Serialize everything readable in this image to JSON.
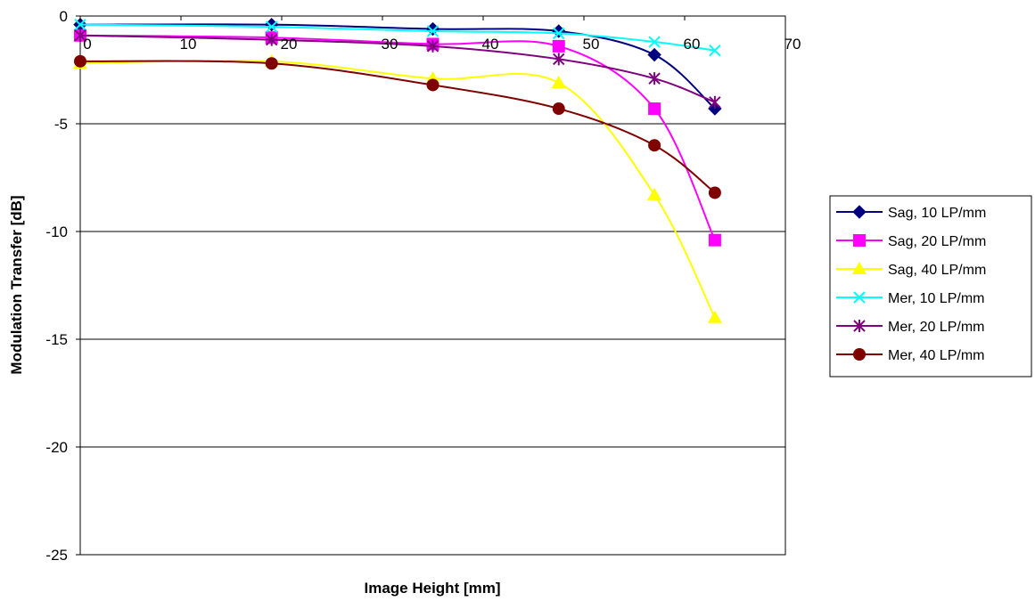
{
  "chart_data": {
    "type": "line",
    "title": "",
    "xlabel": "Image Height [mm]",
    "ylabel": "Modulation Transfer [dB]",
    "xlim": [
      0,
      70
    ],
    "ylim": [
      -25,
      0
    ],
    "x_ticks": [
      0,
      10,
      20,
      30,
      40,
      50,
      60,
      70
    ],
    "y_ticks": [
      0,
      -5,
      -10,
      -15,
      -20,
      -25
    ],
    "grid": "horizontal",
    "legend_position": "right",
    "x": [
      0,
      19,
      35,
      47.5,
      57,
      63
    ],
    "series": [
      {
        "name": "Sag, 10 LP/mm",
        "color": "#000080",
        "marker": "diamond",
        "values": [
          -0.4,
          -0.4,
          -0.6,
          -0.7,
          -1.8,
          -4.3
        ]
      },
      {
        "name": "Sag, 20 LP/mm",
        "color": "#FF00FF",
        "marker": "square",
        "values": [
          -0.9,
          -1.0,
          -1.3,
          -1.4,
          -4.3,
          -10.4
        ]
      },
      {
        "name": "Sag, 40 LP/mm",
        "color": "#FFFF00",
        "marker": "triangle",
        "values": [
          -2.2,
          -2.1,
          -2.9,
          -3.1,
          -8.3,
          -14.0
        ]
      },
      {
        "name": "Mer, 10 LP/mm",
        "color": "#00FFFF",
        "marker": "x",
        "values": [
          -0.4,
          -0.5,
          -0.7,
          -0.8,
          -1.2,
          -1.6
        ]
      },
      {
        "name": "Mer, 20 LP/mm",
        "color": "#800080",
        "marker": "star",
        "values": [
          -0.9,
          -1.1,
          -1.4,
          -2.0,
          -2.9,
          -4.0
        ]
      },
      {
        "name": "Mer, 40 LP/mm",
        "color": "#800000",
        "marker": "circle",
        "values": [
          -2.1,
          -2.2,
          -3.2,
          -4.3,
          -6.0,
          -8.2
        ]
      }
    ]
  }
}
